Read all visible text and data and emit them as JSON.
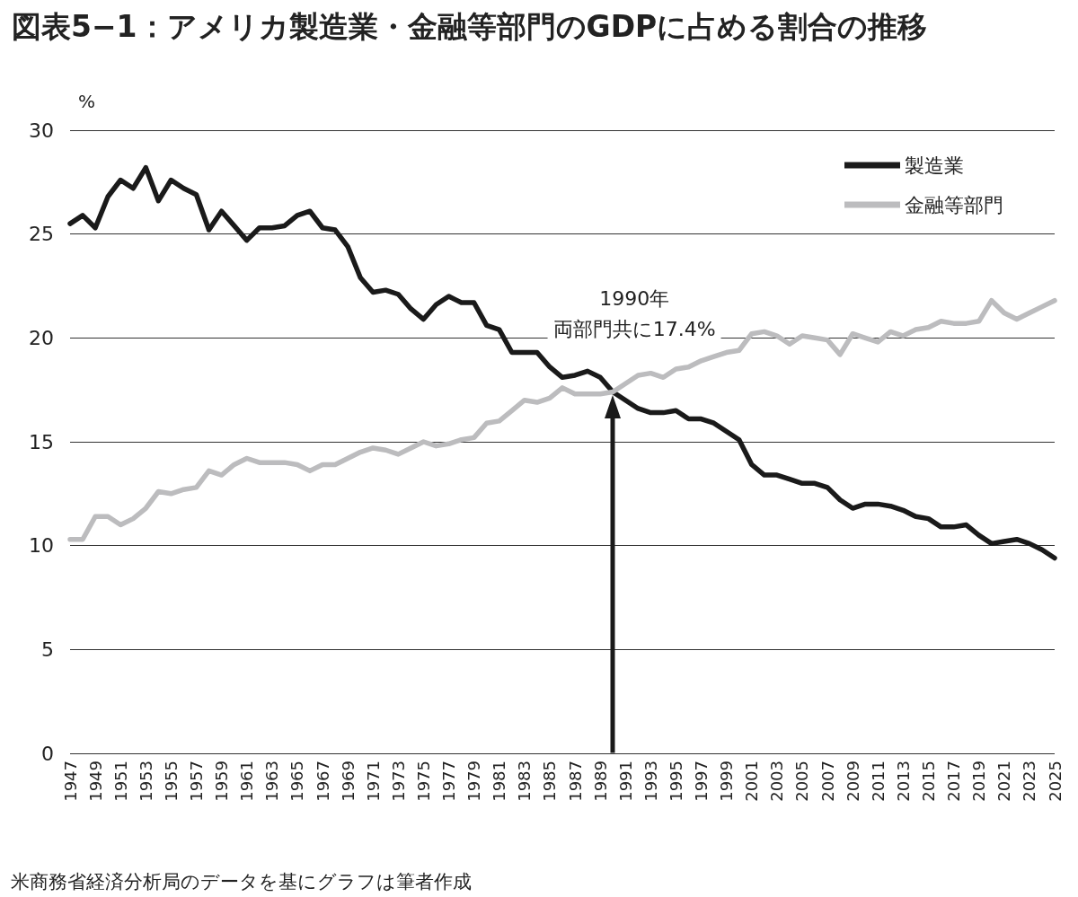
{
  "chart_data": {
    "type": "line",
    "title": "図表5−1：アメリカ製造業・金融等部門のGDPに占める割合の推移",
    "ylabel": "%",
    "x": [
      1947,
      1948,
      1949,
      1950,
      1951,
      1952,
      1953,
      1954,
      1955,
      1956,
      1957,
      1958,
      1959,
      1960,
      1961,
      1962,
      1963,
      1964,
      1965,
      1966,
      1967,
      1968,
      1969,
      1970,
      1971,
      1972,
      1973,
      1974,
      1975,
      1976,
      1977,
      1978,
      1979,
      1980,
      1981,
      1982,
      1983,
      1984,
      1985,
      1986,
      1987,
      1988,
      1989,
      1990,
      1991,
      1992,
      1993,
      1994,
      1995,
      1996,
      1997,
      1998,
      1999,
      2000,
      2001,
      2002,
      2003,
      2004,
      2005,
      2006,
      2007,
      2008,
      2009,
      2010,
      2011,
      2012,
      2013,
      2014,
      2015,
      2016,
      2017,
      2018,
      2019,
      2020,
      2021,
      2022,
      2023,
      2024,
      2025
    ],
    "series": [
      {
        "name": "製造業",
        "color": "#1a1a1a",
        "values": [
          25.5,
          25.9,
          25.3,
          26.8,
          27.6,
          27.2,
          28.2,
          26.6,
          27.6,
          27.2,
          26.9,
          25.2,
          26.1,
          25.4,
          24.7,
          25.3,
          25.3,
          25.4,
          25.9,
          26.1,
          25.3,
          25.2,
          24.4,
          22.9,
          22.2,
          22.3,
          22.1,
          21.4,
          20.9,
          21.6,
          22.0,
          21.7,
          21.7,
          20.6,
          20.4,
          19.3,
          19.3,
          19.3,
          18.6,
          18.1,
          18.2,
          18.4,
          18.1,
          17.4,
          17.0,
          16.6,
          16.4,
          16.4,
          16.5,
          16.1,
          16.1,
          15.9,
          15.5,
          15.1,
          13.9,
          13.4,
          13.4,
          13.2,
          13.0,
          13.0,
          12.8,
          12.2,
          11.8,
          12.0,
          12.0,
          11.9,
          11.7,
          11.4,
          11.3,
          10.9,
          10.9,
          11.0,
          10.5,
          10.1,
          10.2,
          10.3,
          10.1,
          9.8,
          9.4
        ]
      },
      {
        "name": "金融等部門",
        "color": "#bcbcbe",
        "values": [
          10.3,
          10.3,
          11.4,
          11.4,
          11.0,
          11.3,
          11.8,
          12.6,
          12.5,
          12.7,
          12.8,
          13.6,
          13.4,
          13.9,
          14.2,
          14.0,
          14.0,
          14.0,
          13.9,
          13.6,
          13.9,
          13.9,
          14.2,
          14.5,
          14.7,
          14.6,
          14.4,
          14.7,
          15.0,
          14.8,
          14.9,
          15.1,
          15.2,
          15.9,
          16.0,
          16.5,
          17.0,
          16.9,
          17.1,
          17.6,
          17.3,
          17.3,
          17.3,
          17.4,
          17.8,
          18.2,
          18.3,
          18.1,
          18.5,
          18.6,
          18.9,
          19.1,
          19.3,
          19.4,
          20.2,
          20.3,
          20.1,
          19.7,
          20.1,
          20.0,
          19.9,
          19.2,
          20.2,
          20.0,
          19.8,
          20.3,
          20.1,
          20.4,
          20.5,
          20.8,
          20.7,
          20.7,
          20.8,
          21.8,
          21.2,
          20.9,
          21.2,
          21.5,
          21.8
        ]
      }
    ],
    "xlim": [
      1947,
      2025
    ],
    "xticks": [
      1947,
      1949,
      1951,
      1953,
      1955,
      1957,
      1959,
      1961,
      1963,
      1965,
      1967,
      1969,
      1971,
      1973,
      1975,
      1977,
      1979,
      1981,
      1983,
      1985,
      1987,
      1989,
      1991,
      1993,
      1995,
      1997,
      1999,
      2001,
      2003,
      2005,
      2007,
      2009,
      2011,
      2013,
      2015,
      2017,
      2019,
      2021,
      2023,
      2025
    ],
    "ylim": [
      0,
      30
    ],
    "yticks": [
      0,
      5,
      10,
      15,
      20,
      25,
      30
    ],
    "grid": "y",
    "legend": "top right",
    "marker": "none",
    "line_style": "solid",
    "annotations": [
      "1990年",
      {
        "text": "両部門共に17.4%",
        "x": 1990,
        "y": 17.4
      },
      "米商務省経済分析局のデータを基にグラフは筆者作成"
    ]
  }
}
